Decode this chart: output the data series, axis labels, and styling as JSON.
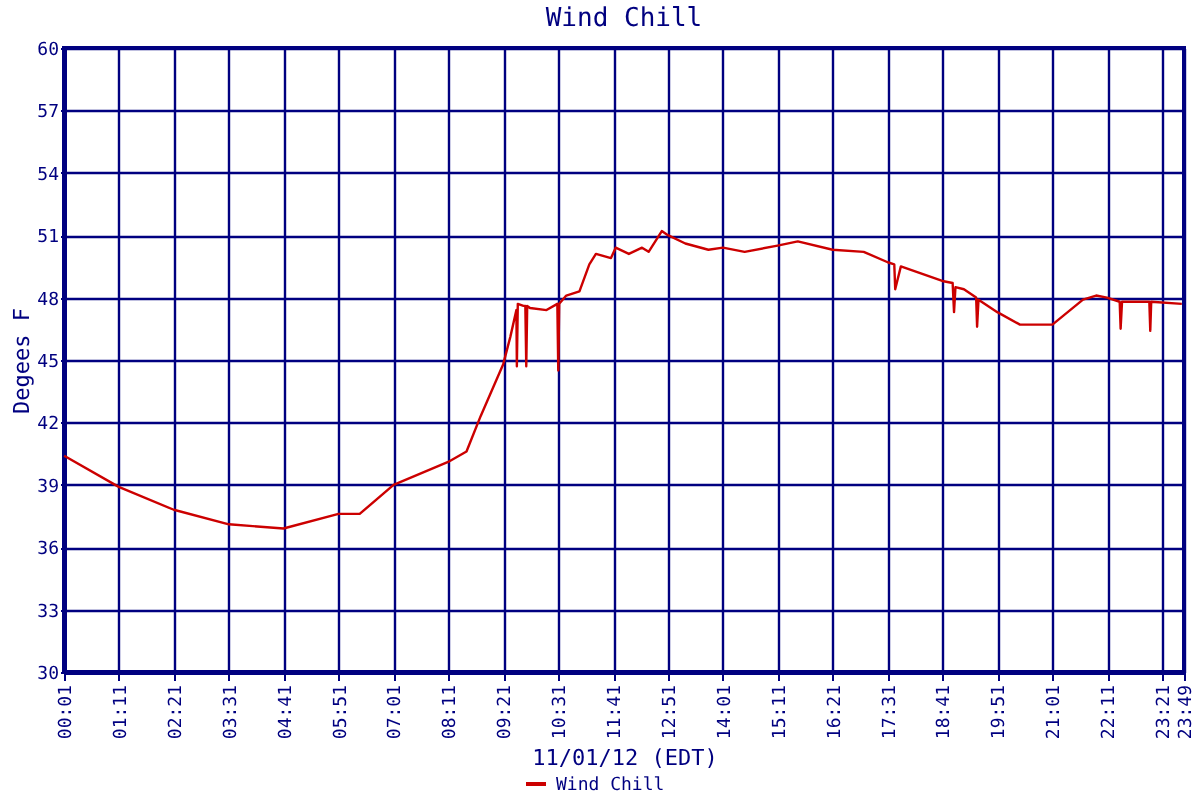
{
  "chart_data": {
    "type": "line",
    "title": "Wind Chill",
    "xlabel": "11/01/12 (EDT)",
    "ylabel": "Degees F",
    "xlim": [
      0.0167,
      23.8167
    ],
    "xticks": [
      {
        "value": 0.0167,
        "label": "00:01"
      },
      {
        "value": 1.1833,
        "label": "01:11"
      },
      {
        "value": 2.35,
        "label": "02:21"
      },
      {
        "value": 3.5167,
        "label": "03:31"
      },
      {
        "value": 4.6833,
        "label": "04:41"
      },
      {
        "value": 5.85,
        "label": "05:51"
      },
      {
        "value": 7.0167,
        "label": "07:01"
      },
      {
        "value": 8.1833,
        "label": "08:11"
      },
      {
        "value": 9.35,
        "label": "09:21"
      },
      {
        "value": 10.5167,
        "label": "10:31"
      },
      {
        "value": 11.6833,
        "label": "11:41"
      },
      {
        "value": 12.85,
        "label": "12:51"
      },
      {
        "value": 14.0167,
        "label": "14:01"
      },
      {
        "value": 15.1833,
        "label": "15:11"
      },
      {
        "value": 16.35,
        "label": "16:21"
      },
      {
        "value": 17.5167,
        "label": "17:31"
      },
      {
        "value": 18.6833,
        "label": "18:41"
      },
      {
        "value": 19.85,
        "label": "19:51"
      },
      {
        "value": 21.0167,
        "label": "21:01"
      },
      {
        "value": 22.1833,
        "label": "22:11"
      },
      {
        "value": 23.35,
        "label": "23:21"
      },
      {
        "value": 23.8167,
        "label": "23:49"
      }
    ],
    "ylim": [
      30,
      60
    ],
    "yticks": [
      30,
      33,
      36,
      39,
      42,
      45,
      48,
      51,
      54,
      57,
      60
    ],
    "grid": true,
    "legend": "bottom",
    "series": [
      {
        "name": "Wind Chill",
        "color": "#cc0000",
        "x": [
          0.02,
          1.18,
          2.35,
          3.52,
          4.68,
          5.85,
          6.3,
          7.02,
          8.18,
          8.57,
          8.87,
          9.35,
          9.5,
          9.63,
          9.64,
          9.66,
          9.78,
          9.82,
          9.84,
          9.86,
          9.92,
          10.27,
          10.5,
          10.52,
          10.54,
          10.69,
          10.97,
          11.18,
          11.32,
          11.64,
          11.74,
          12.02,
          12.3,
          12.44,
          12.72,
          12.85,
          13.22,
          13.71,
          14.02,
          14.48,
          15.18,
          15.61,
          16.35,
          17.01,
          17.52,
          17.66,
          17.68,
          17.8,
          18.68,
          18.9,
          18.93,
          18.96,
          19.14,
          19.4,
          19.42,
          19.45,
          19.85,
          20.33,
          21.02,
          21.67,
          21.95,
          22.18,
          22.45,
          22.47,
          22.5,
          23.08,
          23.1,
          23.12,
          23.77
        ],
        "values": [
          40.4,
          38.9,
          37.8,
          37.1,
          36.9,
          37.6,
          37.6,
          39.0,
          40.1,
          40.6,
          42.3,
          44.8,
          46.1,
          47.4,
          44.7,
          47.7,
          47.6,
          47.6,
          44.7,
          47.6,
          47.5,
          47.4,
          47.7,
          44.5,
          47.7,
          48.1,
          48.3,
          49.6,
          50.1,
          49.9,
          50.4,
          50.1,
          50.4,
          50.2,
          51.2,
          51.0,
          50.6,
          50.3,
          50.4,
          50.2,
          50.5,
          50.7,
          50.3,
          50.2,
          49.7,
          49.6,
          48.4,
          49.5,
          48.8,
          48.7,
          47.3,
          48.5,
          48.4,
          48.0,
          46.6,
          47.9,
          47.3,
          46.7,
          46.7,
          47.9,
          48.1,
          48.0,
          47.8,
          46.5,
          47.8,
          47.8,
          46.4,
          47.8,
          47.7
        ]
      }
    ]
  }
}
